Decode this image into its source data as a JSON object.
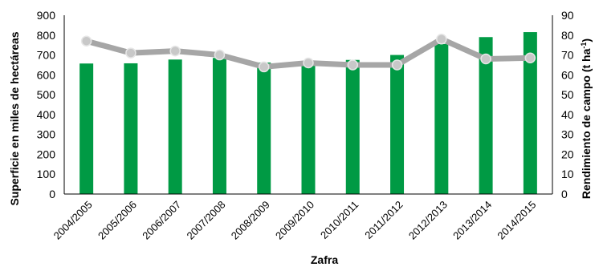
{
  "chart_data": {
    "type": "bar+line",
    "categories": [
      "2004/2005",
      "2005/2006",
      "2006/2007",
      "2007/2008",
      "2008/2009",
      "2009/2010",
      "2010/2011",
      "2011/2012",
      "2012/2013",
      "2013/2014",
      "2014/2015"
    ],
    "series": [
      {
        "name": "Superficie",
        "type": "bar",
        "axis": "left",
        "color": "#009A44",
        "values": [
          657,
          658,
          677,
          685,
          662,
          660,
          675,
          700,
          755,
          790,
          815
        ]
      },
      {
        "name": "Rendimiento",
        "type": "line",
        "axis": "right",
        "color": "#A6A6A6",
        "values": [
          77,
          71,
          72,
          70,
          64,
          66,
          65,
          65,
          78,
          68,
          68.5
        ]
      }
    ],
    "xlabel": "Zafra",
    "ylabel_left": "Superficie en miles de hectáreas",
    "ylabel_right_prefix": "Rendimiento de campo (t ha",
    "ylabel_right_sup": "-1",
    "ylabel_right_suffix": ")",
    "ylim_left": [
      0,
      900
    ],
    "yticks_left": [
      "0",
      "100",
      "200",
      "300",
      "400",
      "500",
      "600",
      "700",
      "800",
      "900"
    ],
    "ylim_right": [
      0,
      90
    ],
    "yticks_right": [
      "0",
      "10",
      "20",
      "30",
      "40",
      "50",
      "60",
      "70",
      "80",
      "90"
    ],
    "grid": false,
    "legend": "none"
  }
}
